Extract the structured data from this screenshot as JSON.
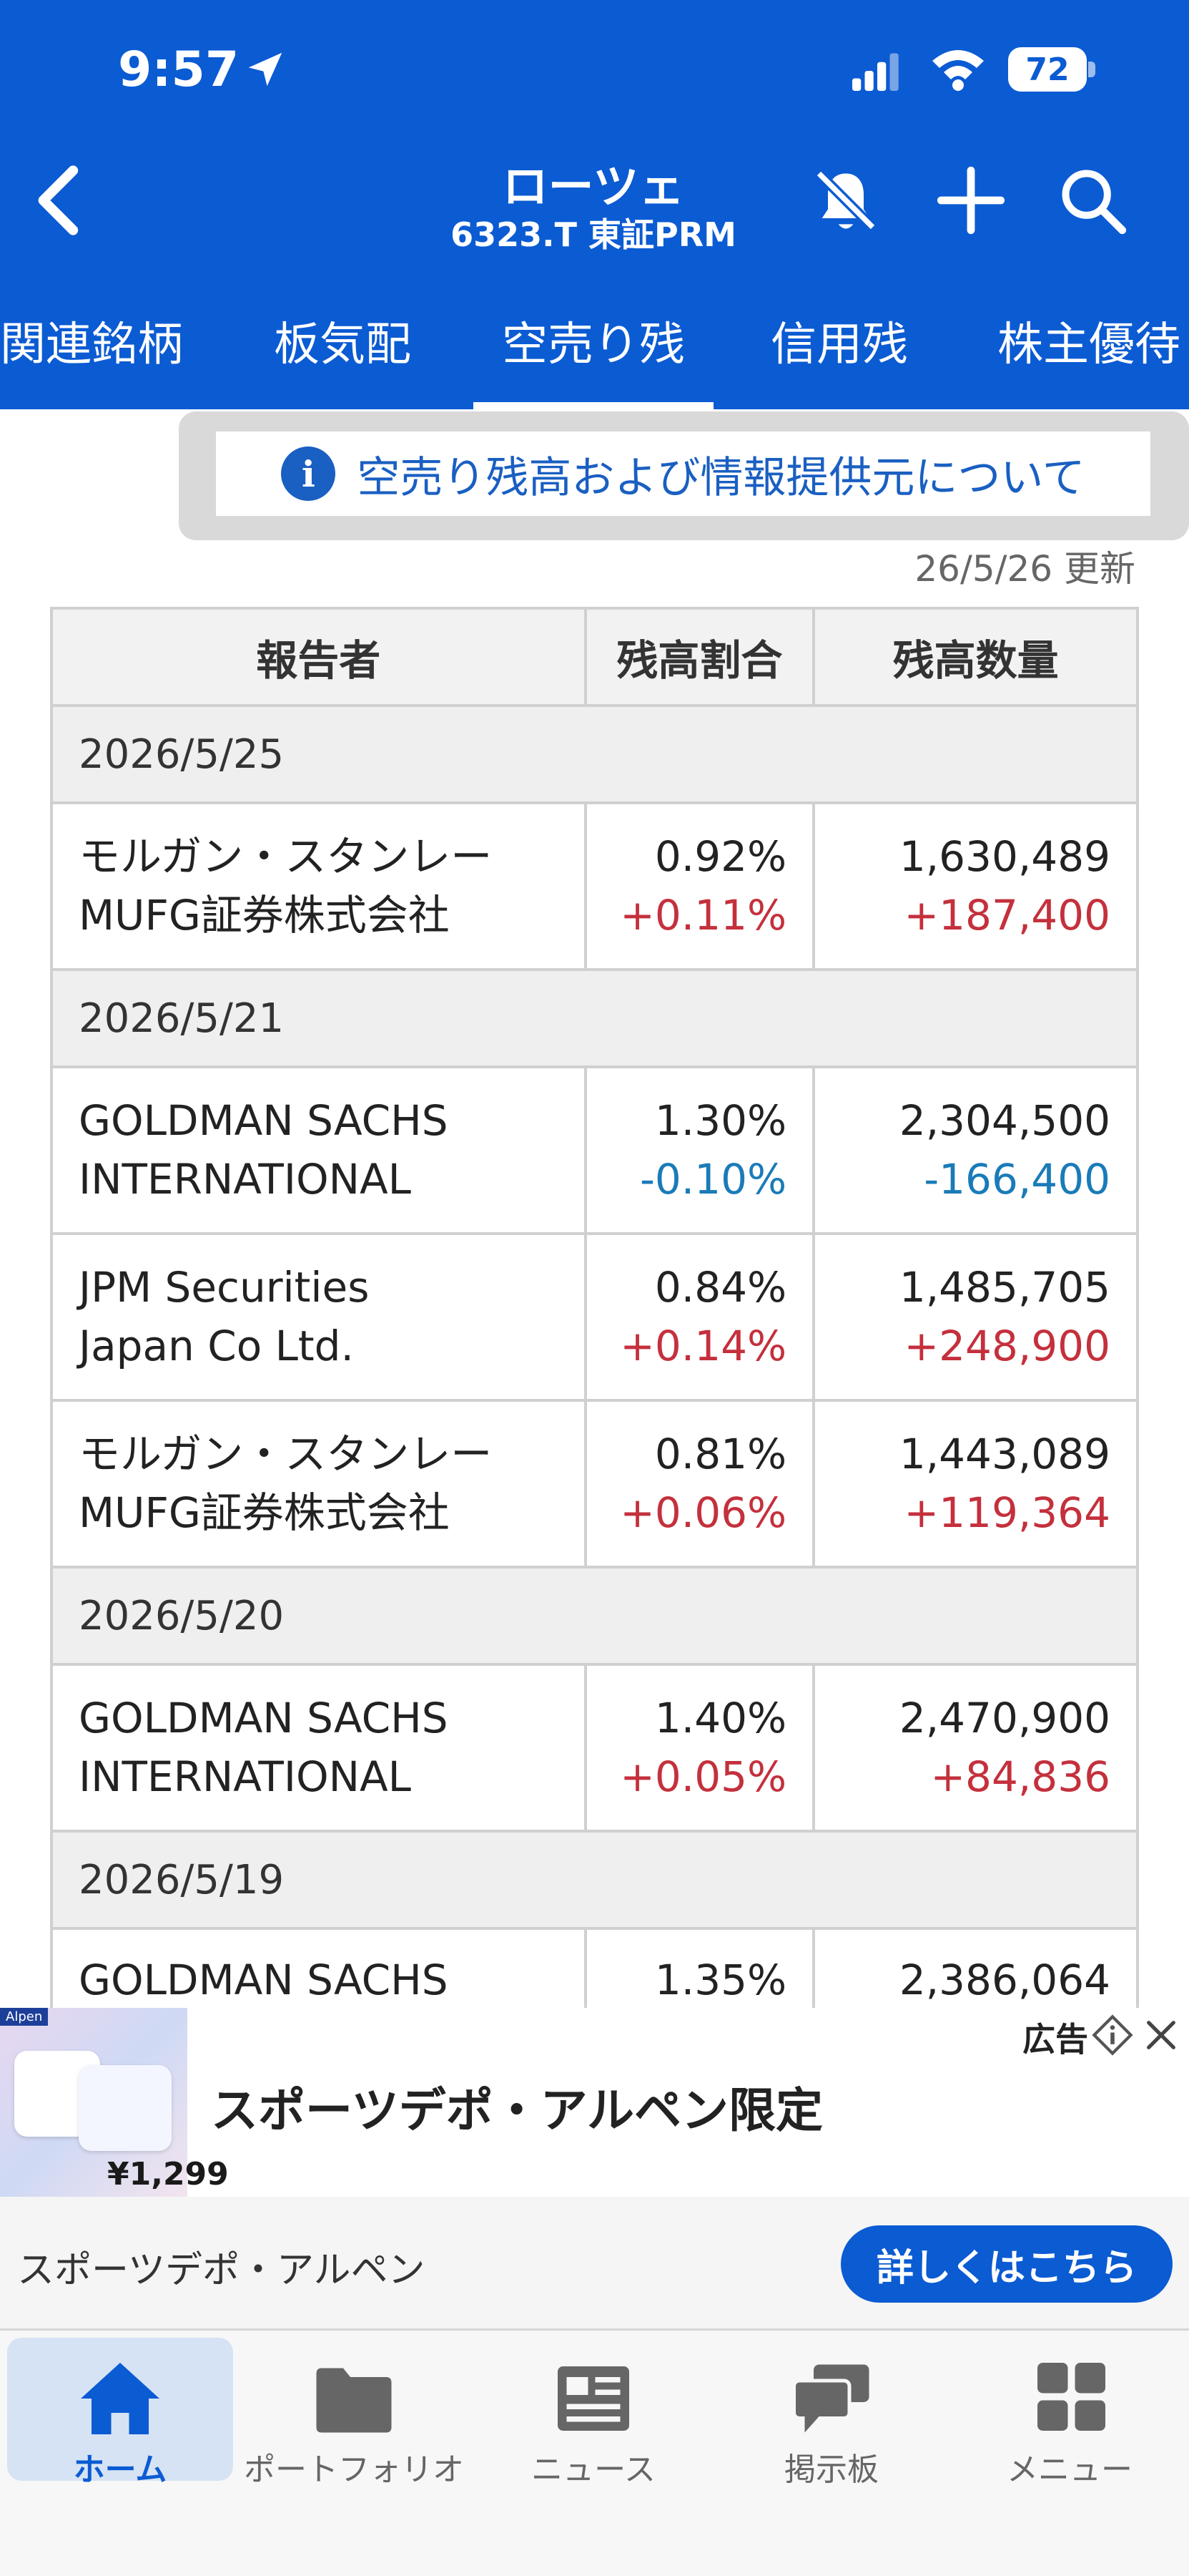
{
  "status_bar": {
    "time": "9:57",
    "battery": "72"
  },
  "header": {
    "stock_name": "ローツェ",
    "stock_code": "6323.T 東証PRM"
  },
  "tabs": [
    {
      "label": "関連銘柄",
      "active": false
    },
    {
      "label": "板気配",
      "active": false
    },
    {
      "label": "空売り残",
      "active": true
    },
    {
      "label": "信用残",
      "active": false
    },
    {
      "label": "株主優待",
      "active": false
    }
  ],
  "info_banner": {
    "text": "空売り残高および情報提供元について"
  },
  "updated": "26/5/26 更新",
  "table": {
    "headers": [
      "報告者",
      "残高割合",
      "残高数量"
    ],
    "groups": [
      {
        "date": "2026/5/25",
        "rows": [
          {
            "reporter": [
              "モルガン・スタンレー",
              "MUFG証券株式会社"
            ],
            "ratio": "0.92%",
            "ratio_change": "+0.11%",
            "qty": "1,630,489",
            "qty_change": "+187,400"
          }
        ]
      },
      {
        "date": "2026/5/21",
        "rows": [
          {
            "reporter": [
              "GOLDMAN SACHS",
              "INTERNATIONAL"
            ],
            "ratio": "1.30%",
            "ratio_change": "-0.10%",
            "qty": "2,304,500",
            "qty_change": "-166,400"
          },
          {
            "reporter": [
              "JPM Securities",
              "Japan Co Ltd."
            ],
            "ratio": "0.84%",
            "ratio_change": "+0.14%",
            "qty": "1,485,705",
            "qty_change": "+248,900"
          },
          {
            "reporter": [
              "モルガン・スタンレー",
              "MUFG証券株式会社"
            ],
            "ratio": "0.81%",
            "ratio_change": "+0.06%",
            "qty": "1,443,089",
            "qty_change": "+119,364"
          }
        ]
      },
      {
        "date": "2026/5/20",
        "rows": [
          {
            "reporter": [
              "GOLDMAN SACHS",
              "INTERNATIONAL"
            ],
            "ratio": "1.40%",
            "ratio_change": "+0.05%",
            "qty": "2,470,900",
            "qty_change": "+84,836"
          }
        ]
      },
      {
        "date": "2026/5/19",
        "rows": [
          {
            "reporter": [
              "GOLDMAN SACHS"
            ],
            "ratio": "1.35%",
            "ratio_change": "",
            "qty": "2,386,064",
            "qty_change": ""
          }
        ]
      }
    ]
  },
  "ad": {
    "title": "スポーツデポ・アルペン限定",
    "label": "広告",
    "image_price": "¥1,299",
    "image_tag": "Alpen",
    "brand": "スポーツデポ・アルペン",
    "cta": "詳しくはこちら"
  },
  "bottom_nav": [
    {
      "label": "ホーム",
      "icon": "home-icon",
      "active": true
    },
    {
      "label": "ポートフォリオ",
      "icon": "folder-icon",
      "active": false
    },
    {
      "label": "ニュース",
      "icon": "news-icon",
      "active": false
    },
    {
      "label": "掲示板",
      "icon": "chat-icon",
      "active": false
    },
    {
      "label": "メニュー",
      "icon": "menu-grid-icon",
      "active": false
    }
  ],
  "colors": {
    "brand": "#0b5bd3",
    "positive": "#c4303c",
    "negative": "#1a7bb8"
  }
}
